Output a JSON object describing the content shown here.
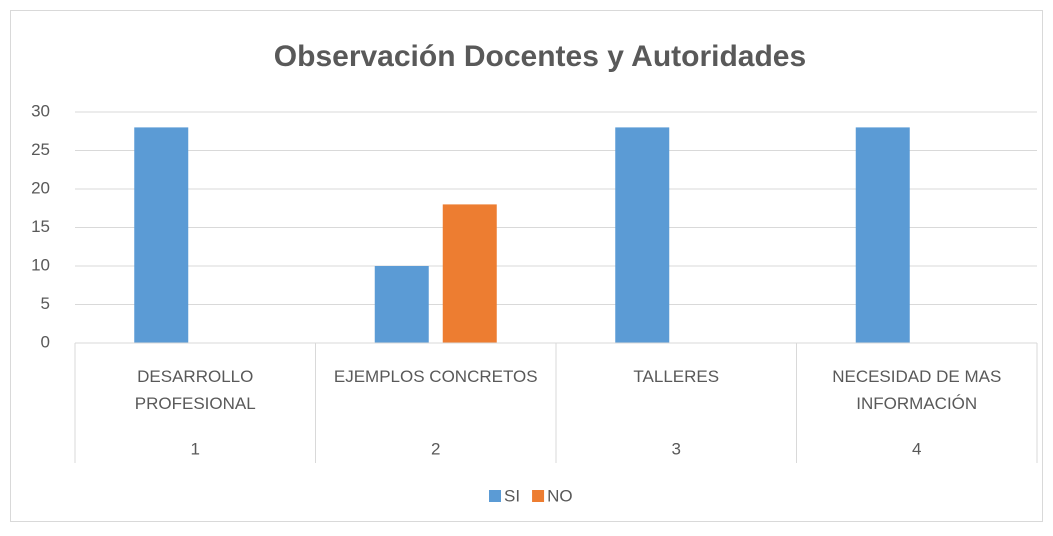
{
  "chart_data": {
    "type": "bar",
    "title": "Observación Docentes y Autoridades",
    "categories": [
      "DESARROLLO PROFESIONAL",
      "EJEMPLOS CONCRETOS",
      "TALLERES",
      "NECESIDAD DE MAS INFORMACIÓN"
    ],
    "categories2": [
      "1",
      "2",
      "3",
      "4"
    ],
    "series": [
      {
        "name": "SI",
        "color": "#5b9bd5",
        "values": [
          28,
          10,
          28,
          28
        ]
      },
      {
        "name": "NO",
        "color": "#ed7d31",
        "values": [
          0,
          18,
          0,
          0
        ]
      }
    ],
    "ylim": [
      0,
      30
    ],
    "yticks": [
      0,
      5,
      10,
      15,
      20,
      25,
      30
    ],
    "grid": true,
    "legend": "bottom"
  }
}
